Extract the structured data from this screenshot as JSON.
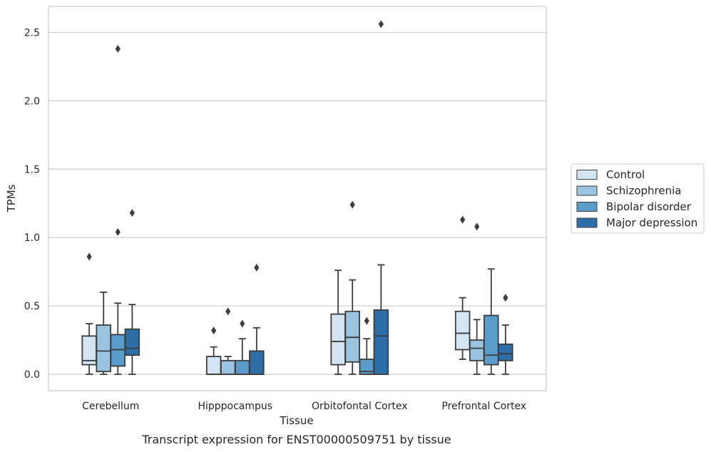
{
  "caption": "Transcript expression for ENST00000509751 by tissue",
  "chart_data": {
    "type": "box",
    "title": "",
    "xlabel": "Tissue",
    "ylabel": "TPMs",
    "ylim": [
      -0.12,
      2.69
    ],
    "yticks": [
      0.0,
      0.5,
      1.0,
      1.5,
      2.0,
      2.5
    ],
    "ytick_labels": [
      "0.0",
      "0.5",
      "1.0",
      "1.5",
      "2.0",
      "2.5"
    ],
    "grid": "horizontal",
    "legend_position": "outside-right",
    "categories": [
      "Cerebellum",
      "Hipppocampus",
      "Orbitofontal Cortex",
      "Prefrontal Cortex"
    ],
    "series": [
      {
        "name": "Control",
        "color": "#d3e4f3",
        "boxes": [
          {
            "whisker_low": 0.0,
            "q1": 0.07,
            "median": 0.1,
            "q3": 0.28,
            "whisker_high": 0.37,
            "outliers": [
              0.86
            ]
          },
          {
            "whisker_low": 0.0,
            "q1": 0.0,
            "median": 0.0,
            "q3": 0.13,
            "whisker_high": 0.2,
            "outliers": [
              0.32
            ]
          },
          {
            "whisker_low": 0.0,
            "q1": 0.07,
            "median": 0.24,
            "q3": 0.44,
            "whisker_high": 0.76,
            "outliers": []
          },
          {
            "whisker_low": 0.11,
            "q1": 0.18,
            "median": 0.3,
            "q3": 0.46,
            "whisker_high": 0.56,
            "outliers": [
              1.13
            ]
          }
        ]
      },
      {
        "name": "Schizophrenia",
        "color": "#9ac4e0",
        "boxes": [
          {
            "whisker_low": 0.0,
            "q1": 0.02,
            "median": 0.17,
            "q3": 0.36,
            "whisker_high": 0.6,
            "outliers": []
          },
          {
            "whisker_low": 0.0,
            "q1": 0.0,
            "median": 0.0,
            "q3": 0.1,
            "whisker_high": 0.13,
            "outliers": [
              0.46
            ]
          },
          {
            "whisker_low": 0.0,
            "q1": 0.09,
            "median": 0.27,
            "q3": 0.46,
            "whisker_high": 0.69,
            "outliers": [
              1.24
            ]
          },
          {
            "whisker_low": 0.0,
            "q1": 0.1,
            "median": 0.19,
            "q3": 0.25,
            "whisker_high": 0.4,
            "outliers": [
              1.08
            ]
          }
        ]
      },
      {
        "name": "Bipolar disorder",
        "color": "#5a9cc9",
        "boxes": [
          {
            "whisker_low": 0.0,
            "q1": 0.06,
            "median": 0.18,
            "q3": 0.29,
            "whisker_high": 0.52,
            "outliers": [
              1.04,
              2.38
            ]
          },
          {
            "whisker_low": 0.0,
            "q1": 0.0,
            "median": 0.0,
            "q3": 0.1,
            "whisker_high": 0.26,
            "outliers": [
              0.37
            ]
          },
          {
            "whisker_low": 0.0,
            "q1": 0.0,
            "median": 0.02,
            "q3": 0.11,
            "whisker_high": 0.26,
            "outliers": [
              0.39
            ]
          },
          {
            "whisker_low": 0.0,
            "q1": 0.07,
            "median": 0.14,
            "q3": 0.43,
            "whisker_high": 0.77,
            "outliers": []
          }
        ]
      },
      {
        "name": "Major depression",
        "color": "#2d6da8",
        "boxes": [
          {
            "whisker_low": 0.0,
            "q1": 0.14,
            "median": 0.19,
            "q3": 0.33,
            "whisker_high": 0.51,
            "outliers": [
              1.18
            ]
          },
          {
            "whisker_low": 0.0,
            "q1": 0.0,
            "median": 0.0,
            "q3": 0.17,
            "whisker_high": 0.34,
            "outliers": [
              0.78
            ]
          },
          {
            "whisker_low": 0.0,
            "q1": 0.0,
            "median": 0.28,
            "q3": 0.47,
            "whisker_high": 0.8,
            "outliers": [
              2.56
            ]
          },
          {
            "whisker_low": 0.0,
            "q1": 0.1,
            "median": 0.15,
            "q3": 0.22,
            "whisker_high": 0.36,
            "outliers": [
              0.56
            ]
          }
        ]
      }
    ]
  }
}
